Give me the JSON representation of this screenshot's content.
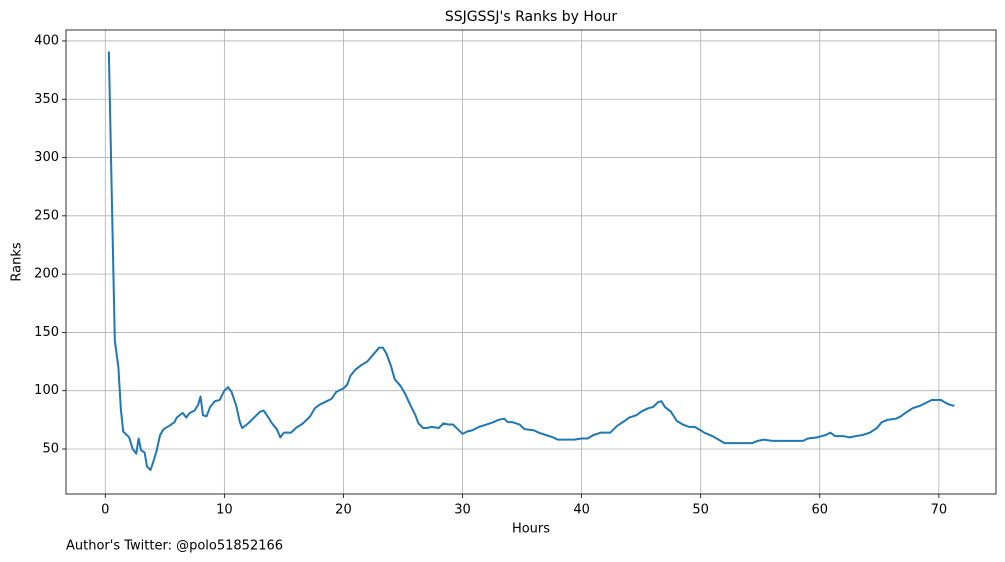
{
  "chart_data": {
    "type": "line",
    "title": "SSJGSSJ's Ranks by Hour",
    "x_label": "Hours",
    "y_label": "Ranks",
    "footnote": "Author's Twitter: @polo51852166",
    "xlim": [
      -3.3,
      74.8
    ],
    "ylim": [
      11.4,
      409.4
    ],
    "xticks": [
      0,
      10,
      20,
      30,
      40,
      50,
      60,
      70
    ],
    "yticks": [
      50,
      100,
      150,
      200,
      250,
      300,
      350,
      400
    ],
    "grid": true,
    "series": [
      {
        "name": "Ranks",
        "color": "#1f77b4",
        "x": [
          0.3,
          0.6,
          0.8,
          1.1,
          1.3,
          1.5,
          2.0,
          2.3,
          2.6,
          2.8,
          3.0,
          3.3,
          3.5,
          3.8,
          4.0,
          4.3,
          4.6,
          4.9,
          5.4,
          5.8,
          6.0,
          6.5,
          6.8,
          7.1,
          7.5,
          7.8,
          8.0,
          8.2,
          8.5,
          8.8,
          9.2,
          9.6,
          10.0,
          10.3,
          10.6,
          11.0,
          11.3,
          11.5,
          12.0,
          12.5,
          13.0,
          13.3,
          13.7,
          14.0,
          14.4,
          14.7,
          15.0,
          15.6,
          16.0,
          16.6,
          17.2,
          17.6,
          18.0,
          18.6,
          19.0,
          19.4,
          20.0,
          20.3,
          20.6,
          21.0,
          21.5,
          22.0,
          22.5,
          23.0,
          23.3,
          23.6,
          24.0,
          24.3,
          24.8,
          25.2,
          25.6,
          26.0,
          26.3,
          26.7,
          27.0,
          27.4,
          28.0,
          28.4,
          28.8,
          29.2,
          29.6,
          30.0,
          30.4,
          30.8,
          31.4,
          32.0,
          32.6,
          33.0,
          33.5,
          33.8,
          34.2,
          34.8,
          35.2,
          36.0,
          36.4,
          37.0,
          37.6,
          38.0,
          38.6,
          39.4,
          40.0,
          40.5,
          41.0,
          41.6,
          42.4,
          43.0,
          43.6,
          44.0,
          44.6,
          45.0,
          45.6,
          46.0,
          46.4,
          46.7,
          47.0,
          47.5,
          48.0,
          48.5,
          49.0,
          49.5,
          50.0,
          50.3,
          51.0,
          51.5,
          52.0,
          52.5,
          53.5,
          54.3,
          54.8,
          55.3,
          56.0,
          57.0,
          58.0,
          58.6,
          59.0,
          59.8,
          60.5,
          60.9,
          61.3,
          62.0,
          62.5,
          63.0,
          63.6,
          64.2,
          64.8,
          65.2,
          65.7,
          66.4,
          66.8,
          67.2,
          67.8,
          68.4,
          69.0,
          69.4,
          69.8,
          70.2,
          70.5,
          70.9,
          71.3
        ],
        "values": [
          391,
          240,
          143,
          120,
          85,
          65,
          60,
          50,
          46,
          59,
          49,
          47,
          35,
          32,
          38,
          48,
          62,
          67,
          70,
          73,
          77,
          81,
          77,
          81,
          83,
          88,
          95,
          79,
          78,
          86,
          91,
          92,
          100,
          103,
          99,
          87,
          73,
          68,
          72,
          77,
          82,
          83,
          77,
          72,
          67,
          60,
          64,
          64,
          68,
          72,
          78,
          85,
          88,
          91,
          93,
          99,
          102,
          105,
          113,
          118,
          122,
          125,
          131,
          137,
          137,
          132,
          121,
          110,
          104,
          97,
          88,
          80,
          72,
          68,
          68,
          69,
          68,
          72,
          71,
          71,
          67,
          63,
          65,
          66,
          69,
          71,
          73,
          75,
          76,
          73,
          73,
          71,
          67,
          66,
          64,
          62,
          60,
          58,
          58,
          58,
          59,
          59,
          62,
          64,
          64,
          70,
          74,
          77,
          79,
          82,
          85,
          86,
          90,
          91,
          86,
          82,
          74,
          71,
          69,
          69,
          66,
          64,
          61,
          58,
          55,
          55,
          55,
          55,
          57,
          58,
          57,
          57,
          57,
          57,
          59,
          60,
          62,
          64,
          61,
          61,
          60,
          61,
          62,
          64,
          68,
          73,
          75,
          76,
          78,
          81,
          85,
          87,
          90,
          92,
          92,
          92,
          90,
          88,
          87
        ]
      }
    ]
  }
}
